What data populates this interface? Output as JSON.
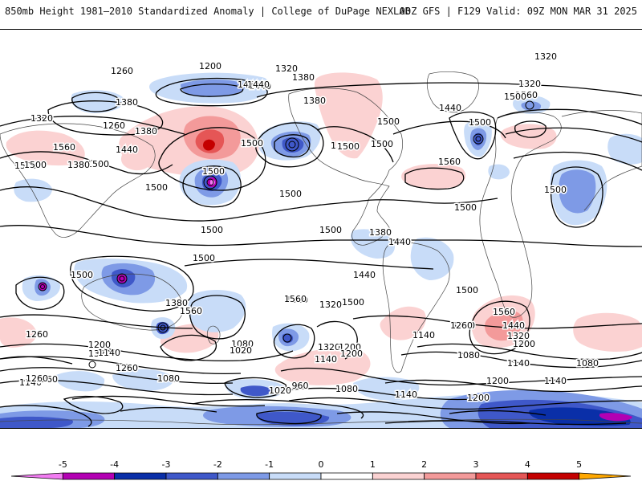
{
  "header": {
    "left_title": "850mb Height 1981–2010 Standardized Anomaly | College of DuPage NEXLAB",
    "right_title": "00Z GFS | F129 Valid: 09Z MON MAR 31 2025"
  },
  "colorbar": {
    "ticks": [
      "-5",
      "-4",
      "-3",
      "-2",
      "-1",
      "0",
      "1",
      "2",
      "3",
      "4",
      "5"
    ],
    "colors": [
      "#f27cf2",
      "#b300b3",
      "#0a2fa8",
      "#3f58c9",
      "#7e9ae6",
      "#c8dcf8",
      "#ffffff",
      "#fbd2d2",
      "#f39a9a",
      "#e55656",
      "#c40000",
      "#ffa800"
    ]
  },
  "contour_labels": [
    {
      "text": "1320"
    },
    {
      "text": "1440"
    },
    {
      "text": "1260"
    },
    {
      "text": "1200"
    },
    {
      "text": "1380"
    },
    {
      "text": "1320"
    },
    {
      "text": "1440"
    },
    {
      "text": "1380"
    },
    {
      "text": "1260"
    },
    {
      "text": "1320"
    },
    {
      "text": "1380"
    },
    {
      "text": "1560"
    },
    {
      "text": "1500"
    },
    {
      "text": "1440"
    },
    {
      "text": "1500"
    },
    {
      "text": "1380"
    },
    {
      "text": "1500"
    },
    {
      "text": "1500"
    },
    {
      "text": "1500"
    },
    {
      "text": "1440"
    },
    {
      "text": "1380"
    },
    {
      "text": "1500"
    },
    {
      "text": "1560"
    },
    {
      "text": "1500"
    },
    {
      "text": "1500"
    },
    {
      "text": "1440"
    },
    {
      "text": "1320"
    },
    {
      "text": "1500"
    },
    {
      "text": "1560"
    },
    {
      "text": "1500"
    },
    {
      "text": "1500"
    },
    {
      "text": "1500"
    },
    {
      "text": "1500"
    },
    {
      "text": "1500"
    },
    {
      "text": "1500"
    },
    {
      "text": "1500"
    },
    {
      "text": "1500"
    },
    {
      "text": "1500"
    },
    {
      "text": "1560"
    },
    {
      "text": "1500"
    },
    {
      "text": "1380"
    },
    {
      "text": "1440"
    },
    {
      "text": "1380"
    },
    {
      "text": "1560"
    },
    {
      "text": "1500"
    },
    {
      "text": "1440"
    },
    {
      "text": "1320"
    },
    {
      "text": "1380"
    },
    {
      "text": "1500"
    },
    {
      "text": "1560"
    },
    {
      "text": "1440"
    },
    {
      "text": "1320"
    },
    {
      "text": "1260"
    },
    {
      "text": "1200"
    },
    {
      "text": "1260"
    },
    {
      "text": "1320"
    },
    {
      "text": "1200"
    },
    {
      "text": "1140"
    },
    {
      "text": "1260"
    },
    {
      "text": "1080"
    },
    {
      "text": "1020"
    },
    {
      "text": "1320"
    },
    {
      "text": "1140"
    },
    {
      "text": "1200"
    },
    {
      "text": "1260"
    },
    {
      "text": "1140"
    },
    {
      "text": "1080"
    },
    {
      "text": "1080"
    },
    {
      "text": "1140"
    },
    {
      "text": "1080"
    },
    {
      "text": "1200"
    },
    {
      "text": "1140"
    },
    {
      "text": "1260"
    },
    {
      "text": "1200"
    },
    {
      "text": "1260"
    },
    {
      "text": "1140"
    },
    {
      "text": "1020"
    },
    {
      "text": "960"
    },
    {
      "text": "1080"
    },
    {
      "text": "1140"
    },
    {
      "text": "1200"
    }
  ]
}
